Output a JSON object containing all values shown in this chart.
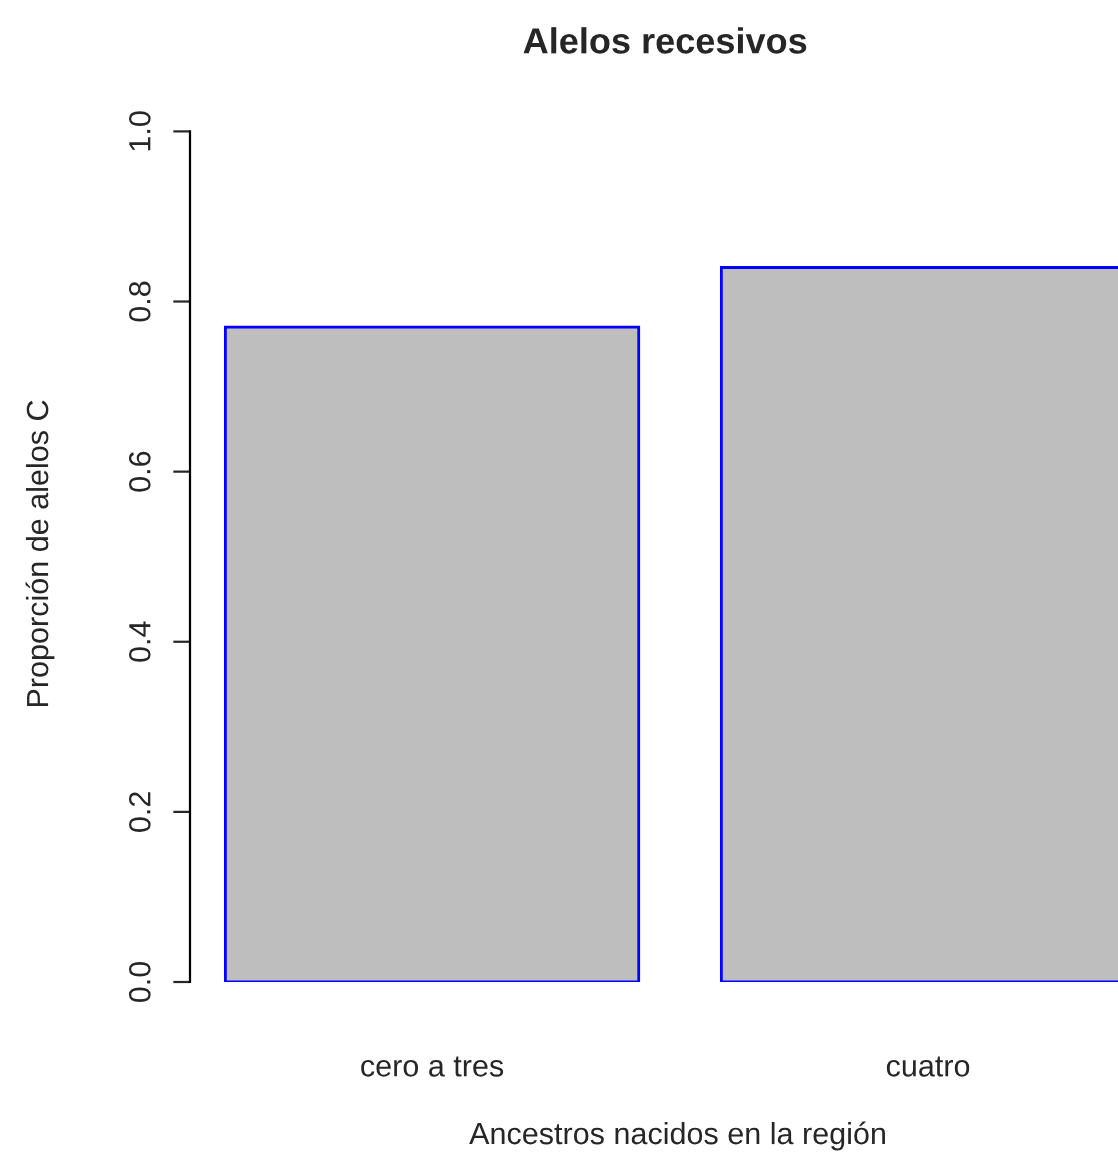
{
  "chart_data": {
    "type": "bar",
    "title": "Alelos recesivos",
    "xlabel": "Ancestros nacidos en la región",
    "ylabel": "Proporción de alelos C",
    "categories": [
      "cero a tres",
      "cuatro"
    ],
    "series": [
      {
        "color": "#bebebe",
        "values": [
          0.77,
          0.84
        ]
      }
    ],
    "ylim": [
      0,
      1
    ],
    "yticks": [
      {
        "value": 0,
        "label": "0.0"
      },
      {
        "value": 0.2,
        "label": "0.2"
      },
      {
        "value": 0.4,
        "label": "0.4"
      },
      {
        "value": 0.6,
        "label": "0.6"
      },
      {
        "value": 0.8,
        "label": "0.8"
      },
      {
        "value": 1,
        "label": "1.0"
      }
    ],
    "grid": false,
    "legend": false
  }
}
